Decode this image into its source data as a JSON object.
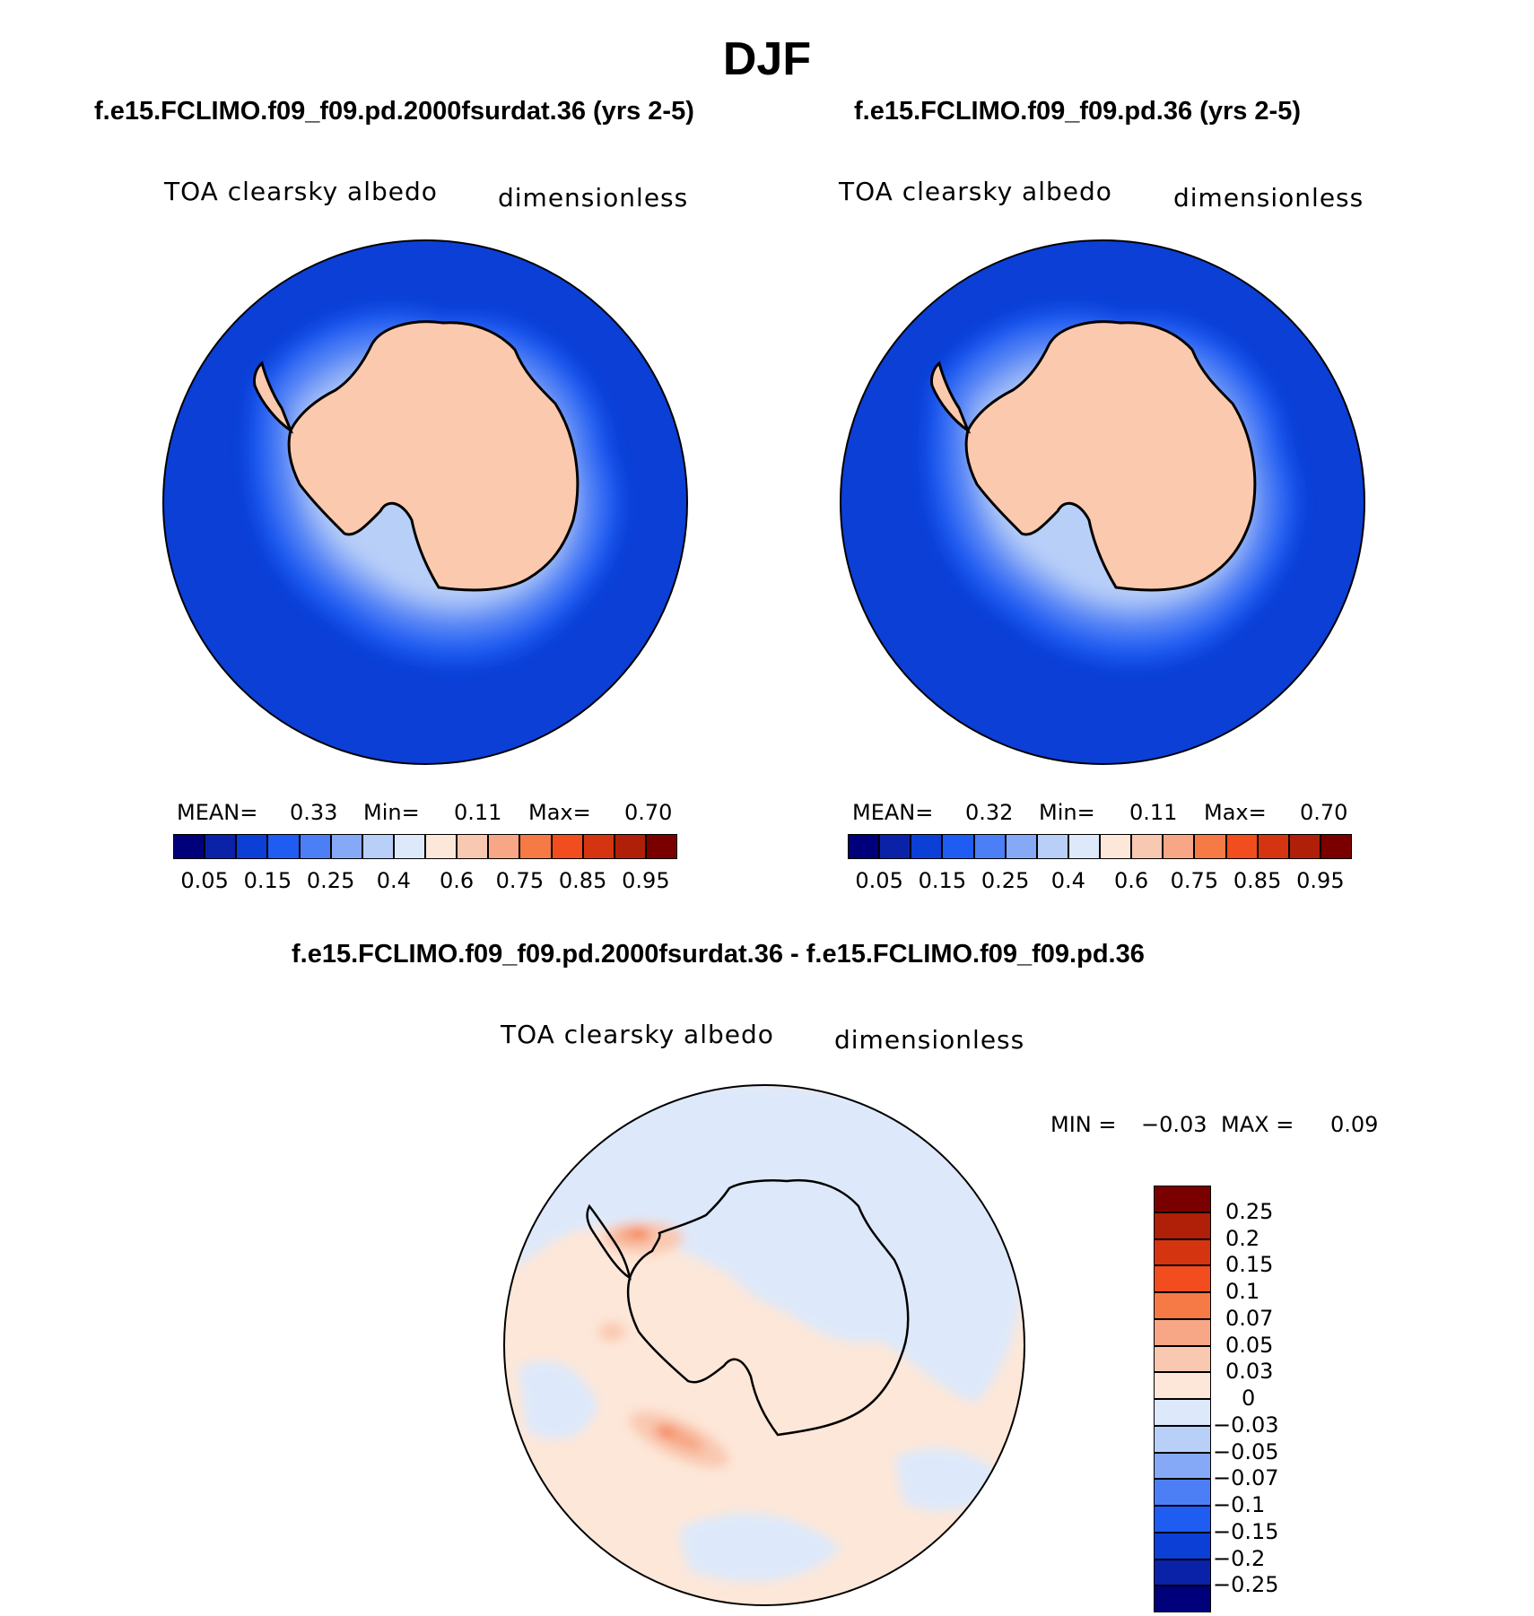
{
  "title": "DJF",
  "panels": [
    {
      "id": "case1",
      "title": "f.e15.FCLIMO.f09_f09.pd.2000fsurdat.36 (yrs 2-5)",
      "variable": "TOA clearsky albedo",
      "units": "dimensionless",
      "stats": {
        "mean_label": "MEAN=",
        "mean": "0.33",
        "min_label": "Min=",
        "min": "0.11",
        "max_label": "Max=",
        "max": "0.70"
      }
    },
    {
      "id": "case2",
      "title": "f.e15.FCLIMO.f09_f09.pd.36 (yrs 2-5)",
      "variable": "TOA clearsky albedo",
      "units": "dimensionless",
      "stats": {
        "mean_label": "MEAN=",
        "mean": "0.32",
        "min_label": "Min=",
        "min": "0.11",
        "max_label": "Max=",
        "max": "0.70"
      }
    }
  ],
  "diff_panel": {
    "title": "f.e15.FCLIMO.f09_f09.pd.2000fsurdat.36 - f.e15.FCLIMO.f09_f09.pd.36",
    "variable": "TOA clearsky albedo",
    "units": "dimensionless",
    "stats": {
      "min_label": "MIN =",
      "min": "−0.03",
      "max_label": "MAX =",
      "max": "0.09"
    }
  },
  "abs_colorbar": {
    "labels": [
      "0.05",
      "0.15",
      "0.25",
      "0.4",
      "0.6",
      "0.75",
      "0.85",
      "0.95"
    ],
    "colors": [
      "#00007a",
      "#0a22a8",
      "#0b3fd6",
      "#1f5cf2",
      "#4c7ff5",
      "#86a9f7",
      "#b8cff8",
      "#dde9fb",
      "#fde7d8",
      "#f9c8b0",
      "#f7a785",
      "#f57a45",
      "#f14d1e",
      "#d43510",
      "#b01f08",
      "#7a0000"
    ]
  },
  "diff_colorbar": {
    "labels": [
      "0.25",
      "0.2",
      "0.15",
      "0.1",
      "0.07",
      "0.05",
      "0.03",
      "0",
      "−0.03",
      "−0.05",
      "−0.07",
      "−0.1",
      "−0.15",
      "−0.2",
      "−0.25"
    ],
    "colors": [
      "#7a0000",
      "#b01f08",
      "#d43510",
      "#f14d1e",
      "#f57a45",
      "#f7a785",
      "#f9c8b0",
      "#fde7d8",
      "#dde9fb",
      "#b8cff8",
      "#86a9f7",
      "#4c7ff5",
      "#1f5cf2",
      "#0b3fd6",
      "#0a22a8",
      "#00007a"
    ]
  },
  "map_colors": {
    "ocean": "#0b3fd6",
    "land": "#fbc9ae",
    "diff_ocean": "#fde7d8",
    "diff_neg": "#dde9fb",
    "diff_pos1": "#f9c8b0",
    "diff_pos2": "#f7a785",
    "diff_pos3": "#f57a45"
  }
}
